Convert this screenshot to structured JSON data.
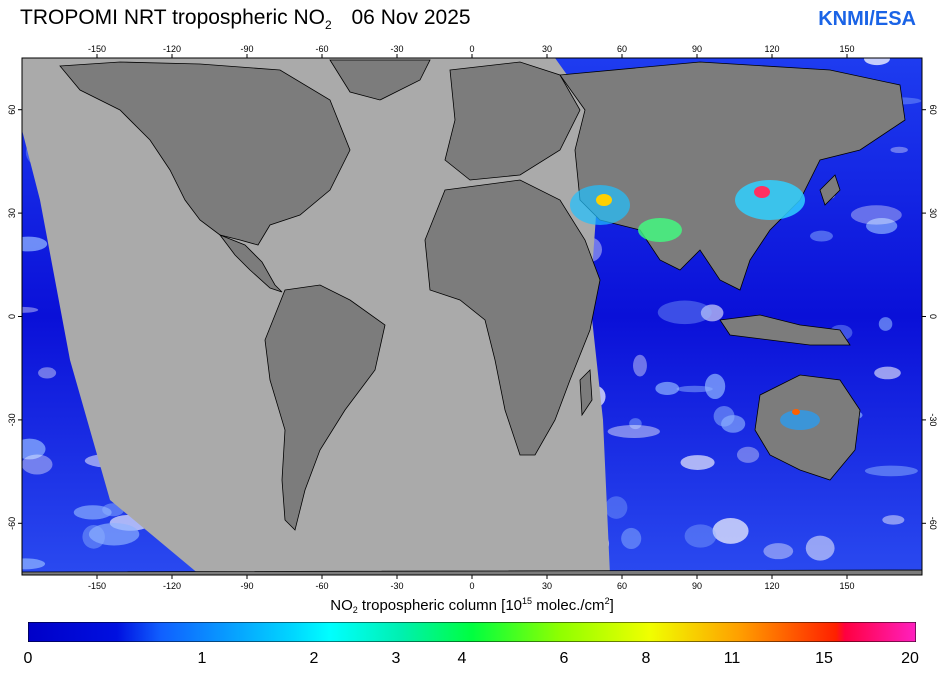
{
  "header": {
    "title_main": "TROPOMI  NRT tropospheric NO",
    "title_sub": "2",
    "date": "06 Nov 2025",
    "credit": "KNMI/ESA"
  },
  "axes": {
    "lon_ticks": [
      "-150",
      "-120",
      "-90",
      "-60",
      "-30",
      "0",
      "30",
      "60",
      "90",
      "120",
      "150"
    ],
    "lon_values": [
      -150,
      -120,
      -90,
      -60,
      -30,
      0,
      30,
      60,
      90,
      120,
      150
    ],
    "lat_ticks": [
      "60",
      "30",
      "0",
      "-30",
      "-60"
    ],
    "lat_values": [
      60,
      30,
      0,
      -30,
      -60
    ]
  },
  "colorbar": {
    "title_prefix": "NO",
    "title_sub": "2",
    "title_mid": " tropospheric column [10",
    "title_sup1": "15",
    "title_mid2": " molec./cm",
    "title_sup2": "2",
    "title_end": "]",
    "labels": [
      "0",
      "1",
      "2",
      "3",
      "4",
      "6",
      "8",
      "11",
      "15",
      "20"
    ]
  },
  "map": {
    "extent": {
      "lon": [
        -180,
        180
      ],
      "lat": [
        -75,
        75
      ]
    },
    "data_gap_fill": "#aaaaaa",
    "land_fill": "#7c7c7c",
    "coast_color": "#000000",
    "low_color": "#0a0ad6"
  }
}
